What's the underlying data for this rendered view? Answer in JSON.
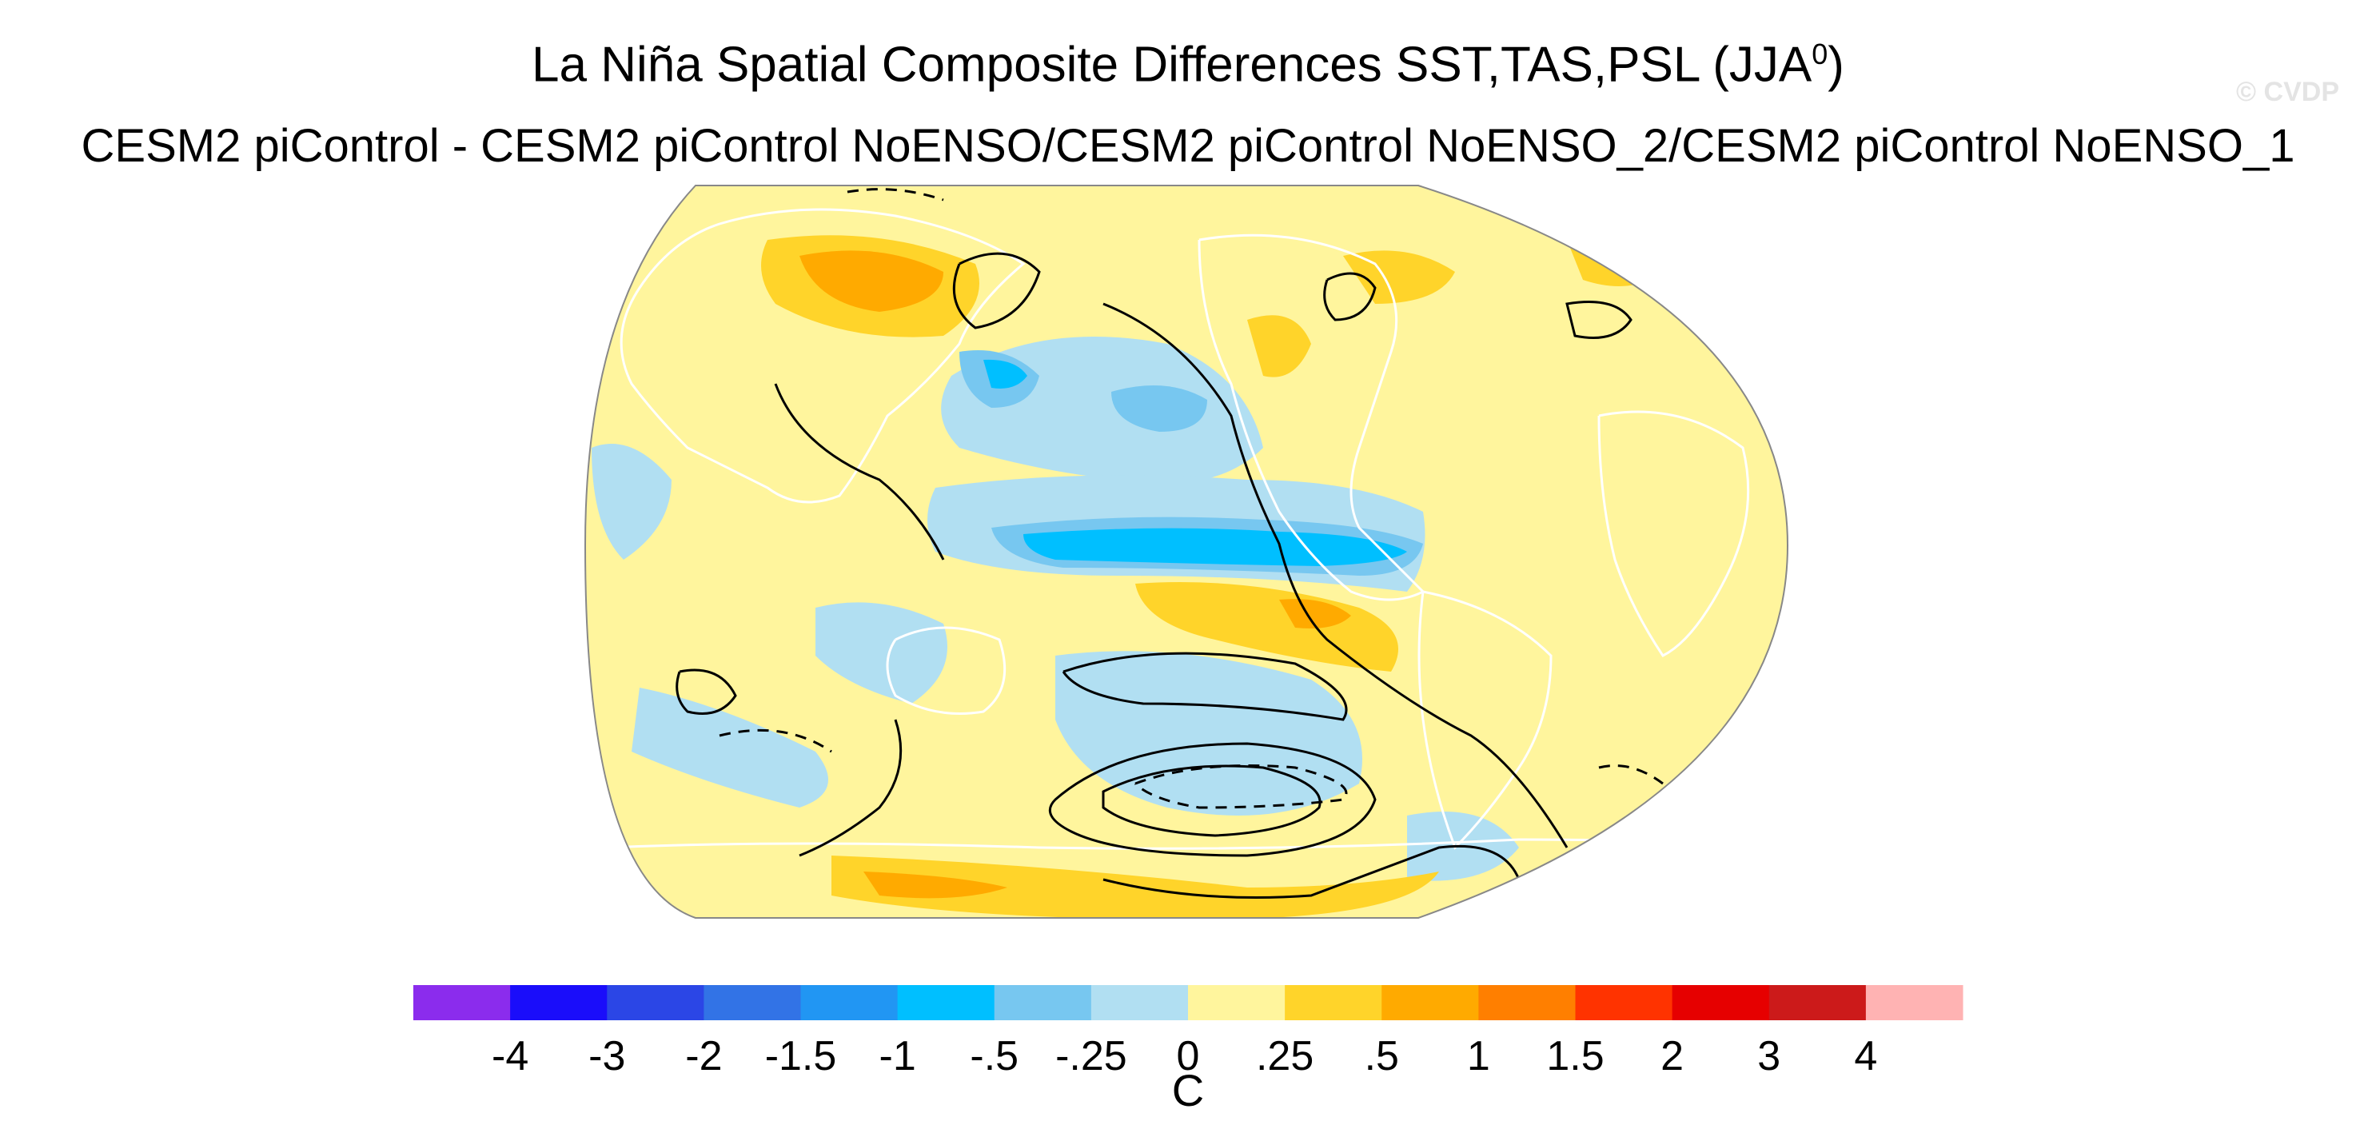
{
  "figure": {
    "title": "La Niña Spatial Composite Differences SST,TAS,PSL (JJA",
    "title_superscript": "0",
    "title_close": ")",
    "subtitle": "CESM2 piControl - CESM2 piControl NoENSO/CESM2 piControl NoENSO_2/CESM2 piControl NoENSO_1",
    "watermark": "© CVDP"
  },
  "colorbar": {
    "unit": "C",
    "tick_labels": [
      "-4",
      "-3",
      "-2",
      "-1.5",
      "-1",
      "-.5",
      "-.25",
      "0",
      ".25",
      ".5",
      "1",
      "1.5",
      "2",
      "3",
      "4"
    ],
    "colors": [
      "#8b2ced",
      "#1a0dfa",
      "#2b46e6",
      "#3273e6",
      "#2196f3",
      "#00bfff",
      "#77c7f0",
      "#b1dff2",
      "#fff59d",
      "#ffd42a",
      "#ffaa00",
      "#ff7f00",
      "#ff3300",
      "#e60000",
      "#cc1a1a",
      "#ffb3b3"
    ]
  },
  "map_colors": {
    "ocean_base": "#fff59d",
    "land_edge": "#ffffff",
    "contour": "#000000"
  }
}
